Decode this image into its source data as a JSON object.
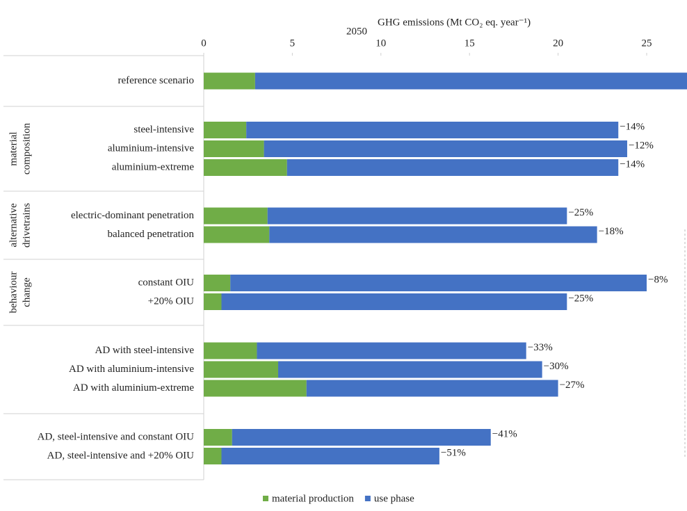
{
  "chart_data": {
    "type": "stacked-hbar",
    "title": "2050",
    "xlabel": "GHG emissions (Mt CO₂ eq. year⁻¹)",
    "groups": [
      {
        "label_lines": [],
        "categories": [
          "reference scenario"
        ]
      },
      {
        "label_lines": [
          "material",
          "composition"
        ],
        "categories": [
          "steel-intensive",
          "aluminium-intensive",
          "aluminium-extreme"
        ]
      },
      {
        "label_lines": [
          "alternative",
          "drivetrains"
        ],
        "categories": [
          "electric-dominant penetration",
          "balanced penetration"
        ]
      },
      {
        "label_lines": [
          "behaviour",
          "change"
        ],
        "categories": [
          "constant OIU",
          "+20% OIU"
        ]
      },
      {
        "label_lines": [],
        "categories": [
          "AD with steel-intensive",
          "AD with aluminium-intensive",
          "AD with aluminium-extreme"
        ]
      },
      {
        "label_lines": [],
        "categories": [
          "AD, steel-intensive and constant OIU",
          "AD, steel-intensive and +20% OIU"
        ]
      }
    ],
    "series": [
      {
        "name": "material production",
        "color": "#70ad47",
        "values": [
          2.9,
          2.4,
          3.4,
          4.7,
          3.6,
          3.7,
          1.5,
          1.0,
          3.0,
          4.2,
          5.8,
          1.6,
          1.0
        ]
      },
      {
        "name": "use phase",
        "color": "#4472c4",
        "values": [
          24.4,
          21.0,
          20.5,
          18.7,
          16.9,
          18.5,
          23.5,
          19.5,
          15.2,
          14.9,
          14.2,
          14.6,
          12.3
        ]
      }
    ],
    "changes": {
      "values": [
        null,
        -14,
        -12,
        -14,
        -25,
        -18,
        -8,
        -25,
        -33,
        -30,
        -27,
        -41,
        -51
      ],
      "value_labels": [
        null,
        "−14%",
        "−12%",
        "−14%",
        "−25%",
        "−18%",
        "−8%",
        "−25%",
        "−33%",
        "−30%",
        "−27%",
        "−41%",
        "−51%"
      ]
    },
    "xlim": [
      0,
      27.3
    ],
    "xticks": [
      0,
      5,
      10,
      15,
      20,
      25
    ],
    "legend": "bottom"
  }
}
